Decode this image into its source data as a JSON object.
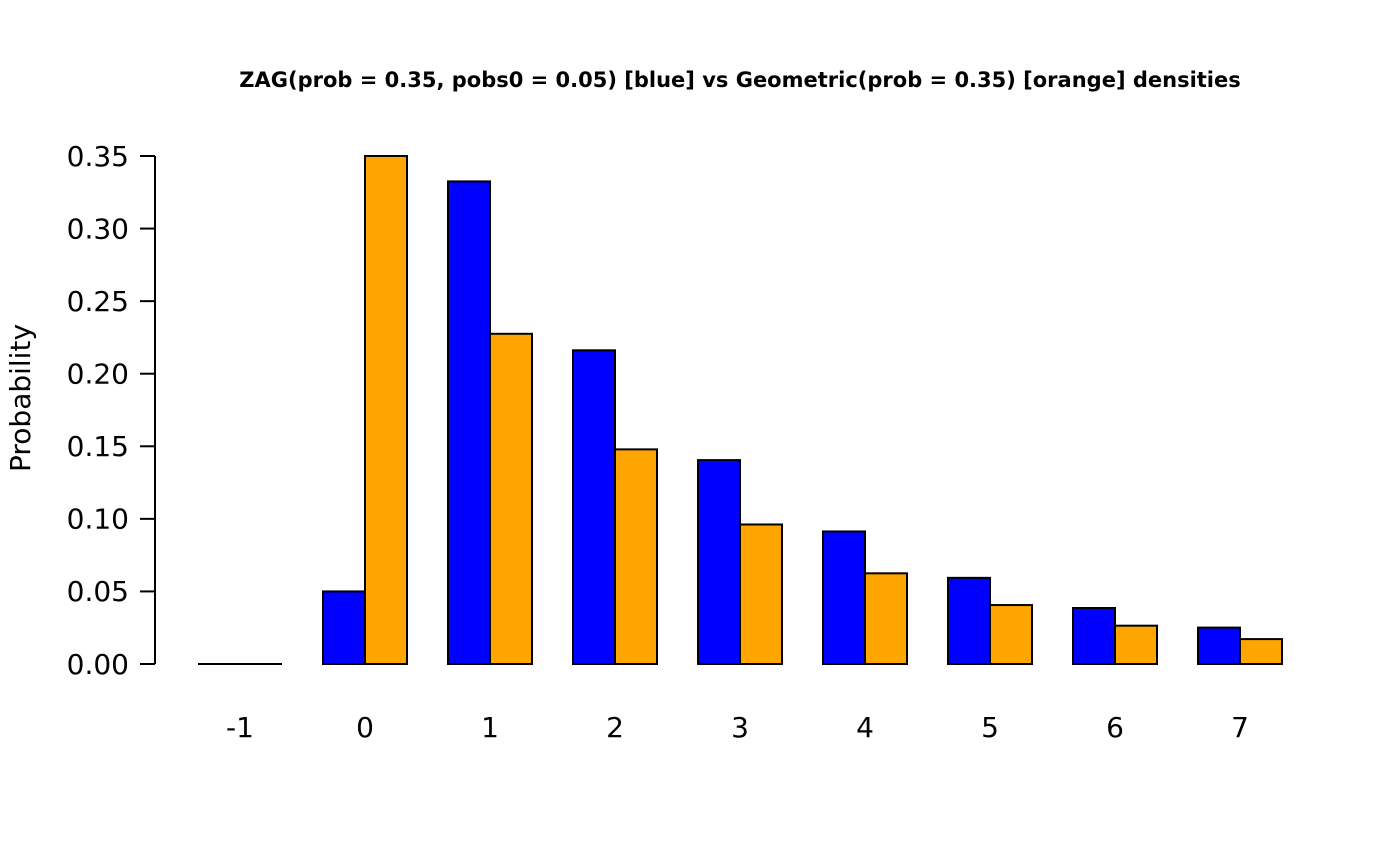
{
  "background": "#FFFFFF",
  "chart_data": {
    "type": "bar",
    "title": "ZAG(prob = 0.35, pobs0 = 0.05) [blue] vs Geometric(prob = 0.35) [orange] densities",
    "xlabel": "",
    "ylabel": "Probability",
    "categories": [
      "-1",
      "0",
      "1",
      "2",
      "3",
      "4",
      "5",
      "6",
      "7"
    ],
    "series": [
      {
        "name": "ZAG(prob = 0.35, pobs0 = 0.05)",
        "key": "zag",
        "color": "#0000FF",
        "values": [
          0,
          0.05,
          0.3325,
          0.216125,
          0.140481,
          0.091313,
          0.059353,
          0.03858,
          0.025077
        ]
      },
      {
        "name": "Geometric(prob = 0.35)",
        "key": "geometric",
        "color": "#FFA500",
        "values": [
          0,
          0.35,
          0.2275,
          0.147875,
          0.096119,
          0.062477,
          0.04061,
          0.026397,
          0.017158
        ]
      }
    ],
    "ylim": [
      0,
      0.35
    ],
    "yticks": [
      0,
      0.05,
      0.1,
      0.15,
      0.2,
      0.25,
      0.3,
      0.35
    ],
    "ytick_labels": [
      "0.00",
      "0.05",
      "0.10",
      "0.15",
      "0.20",
      "0.25",
      "0.30",
      "0.35"
    ],
    "bar_border_color": "#000000",
    "axis_color": "#000000",
    "grid": false,
    "legend_position": "none"
  }
}
